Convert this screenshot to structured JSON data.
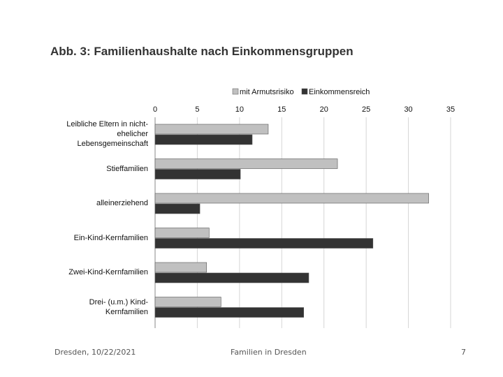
{
  "slide": {
    "title": "Abb. 3: Familienhaushalte nach Einkommensgruppen",
    "footer_date": "Dresden, 10/22/2021",
    "footer_center": "Familien in Dresden",
    "page_number": "7"
  },
  "chart_data": {
    "type": "bar",
    "orientation": "horizontal",
    "categories": [
      "Leibliche Eltern in nicht-ehelicher Lebensgemeinschaft",
      "Stieffamilien",
      "alleinerziehend",
      "Ein-Kind-Kernfamilien",
      "Zwei-Kind-Kernfamilien",
      "Drei- (u.m.) Kind-Kernfamilien"
    ],
    "category_lines": [
      [
        "Leibliche Eltern in nicht-",
        "ehelicher",
        "Lebensgemeinschaft"
      ],
      [
        "Stieffamilien"
      ],
      [
        "alleinerziehend"
      ],
      [
        "Ein-Kind-Kernfamilien"
      ],
      [
        "Zwei-Kind-Kernfamilien"
      ],
      [
        "Drei- (u.m.) Kind-",
        "Kernfamilien"
      ]
    ],
    "series": [
      {
        "name": "mit Armutsrisiko",
        "color": "#c0c0c0",
        "values": [
          13.4,
          21.6,
          32.4,
          6.4,
          6.1,
          7.8
        ]
      },
      {
        "name": "Einkommensreich",
        "color": "#333333",
        "values": [
          11.5,
          10.1,
          5.3,
          25.8,
          18.2,
          17.6
        ]
      }
    ],
    "xlim": [
      0,
      35
    ],
    "x_ticks": [
      "0",
      "5",
      "10",
      "15",
      "20",
      "25",
      "30",
      "35"
    ],
    "legend_position": "top",
    "grid": true
  }
}
